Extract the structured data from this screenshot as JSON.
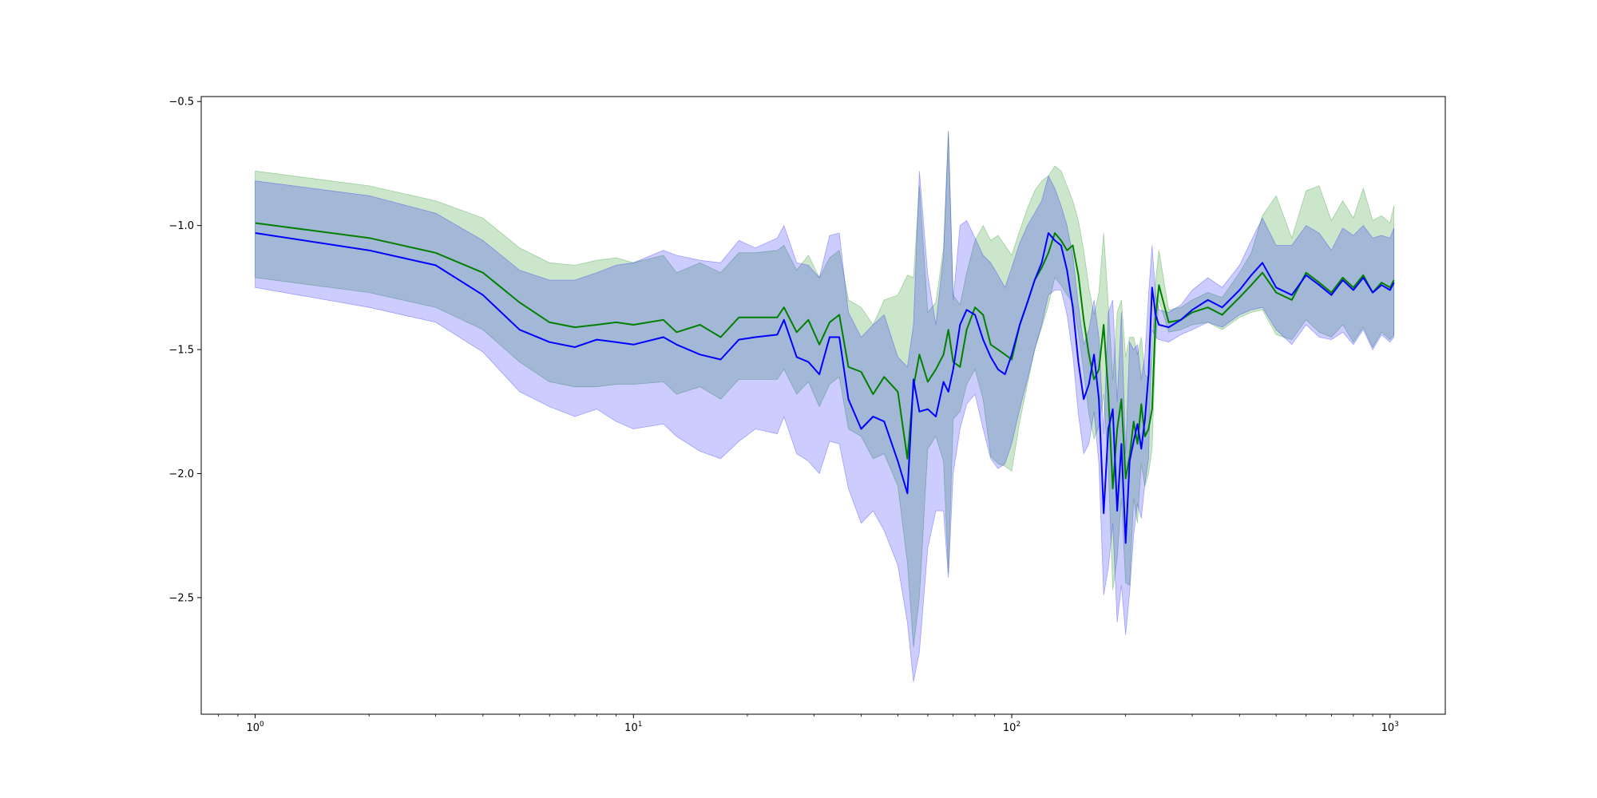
{
  "chart_data": {
    "type": "line",
    "title": "",
    "xlabel": "",
    "ylabel": "",
    "x_scale": "log",
    "xlim": [
      0.72,
      1400
    ],
    "ylim": [
      -2.97,
      -0.48
    ],
    "grid": false,
    "legend": false,
    "x_ticks": [
      {
        "value": 1,
        "base": "10",
        "exp": "0"
      },
      {
        "value": 10,
        "base": "10",
        "exp": "1"
      },
      {
        "value": 100,
        "base": "10",
        "exp": "2"
      },
      {
        "value": 1000,
        "base": "10",
        "exp": "3"
      }
    ],
    "y_ticks": [
      {
        "value": -0.5,
        "label": "−0.5"
      },
      {
        "value": -1.0,
        "label": "−1.0"
      },
      {
        "value": -1.5,
        "label": "−1.5"
      },
      {
        "value": -2.0,
        "label": "−2.0"
      },
      {
        "value": -2.5,
        "label": "−2.5"
      }
    ],
    "series": [
      {
        "color": "#008000",
        "band_color": "#008000",
        "band_opacity": 0.2,
        "x": [
          1,
          2,
          3,
          4,
          5,
          6,
          7,
          8,
          9,
          10,
          12,
          13,
          15,
          17,
          19,
          21,
          24,
          25,
          27,
          29,
          31,
          33,
          35,
          37,
          40,
          43,
          46,
          50,
          53,
          55,
          57,
          60,
          63,
          66,
          68,
          70,
          73,
          76,
          80,
          84,
          88,
          92,
          96,
          100,
          105,
          110,
          115,
          120,
          125,
          130,
          135,
          140,
          145,
          150,
          155,
          160,
          165,
          170,
          175,
          180,
          185,
          190,
          195,
          200,
          205,
          210,
          215,
          220,
          225,
          230,
          235,
          240,
          245,
          260,
          280,
          300,
          330,
          360,
          400,
          430,
          460,
          500,
          550,
          600,
          650,
          700,
          750,
          800,
          850,
          900,
          950,
          1000,
          1024
        ],
        "mean": [
          -0.99,
          -1.05,
          -1.11,
          -1.19,
          -1.31,
          -1.39,
          -1.41,
          -1.4,
          -1.39,
          -1.4,
          -1.38,
          -1.43,
          -1.4,
          -1.45,
          -1.37,
          -1.37,
          -1.37,
          -1.33,
          -1.43,
          -1.38,
          -1.48,
          -1.39,
          -1.36,
          -1.57,
          -1.59,
          -1.68,
          -1.61,
          -1.67,
          -1.94,
          -1.65,
          -1.52,
          -1.63,
          -1.58,
          -1.52,
          -1.42,
          -1.55,
          -1.57,
          -1.42,
          -1.33,
          -1.36,
          -1.48,
          -1.5,
          -1.52,
          -1.54,
          -1.4,
          -1.31,
          -1.22,
          -1.17,
          -1.11,
          -1.03,
          -1.06,
          -1.1,
          -1.08,
          -1.2,
          -1.38,
          -1.52,
          -1.62,
          -1.58,
          -1.4,
          -1.68,
          -2.06,
          -1.82,
          -1.7,
          -2.02,
          -1.93,
          -1.79,
          -1.88,
          -1.72,
          -1.85,
          -1.82,
          -1.74,
          -1.37,
          -1.24,
          -1.39,
          -1.38,
          -1.35,
          -1.33,
          -1.36,
          -1.29,
          -1.24,
          -1.19,
          -1.27,
          -1.3,
          -1.19,
          -1.23,
          -1.27,
          -1.21,
          -1.25,
          -1.2,
          -1.27,
          -1.23,
          -1.25,
          -1.22
        ],
        "lower": [
          -1.21,
          -1.27,
          -1.33,
          -1.42,
          -1.55,
          -1.63,
          -1.65,
          -1.65,
          -1.64,
          -1.64,
          -1.63,
          -1.68,
          -1.65,
          -1.7,
          -1.62,
          -1.62,
          -1.62,
          -1.58,
          -1.68,
          -1.63,
          -1.73,
          -1.64,
          -1.61,
          -1.82,
          -1.85,
          -1.94,
          -1.92,
          -2.05,
          -2.36,
          -2.7,
          -2.5,
          -1.9,
          -1.85,
          -1.95,
          -2.4,
          -1.78,
          -1.75,
          -1.64,
          -1.58,
          -1.7,
          -1.93,
          -1.96,
          -1.97,
          -1.99,
          -1.79,
          -1.64,
          -1.5,
          -1.41,
          -1.32,
          -1.21,
          -1.24,
          -1.28,
          -1.31,
          -1.43,
          -1.59,
          -1.76,
          -1.86,
          -1.81,
          -1.68,
          -1.98,
          -2.47,
          -2.34,
          -2.1,
          -2.44,
          -2.45,
          -2.1,
          -2.2,
          -1.96,
          -2.05,
          -2.0,
          -1.9,
          -1.48,
          -1.3,
          -1.43,
          -1.42,
          -1.4,
          -1.39,
          -1.42,
          -1.37,
          -1.35,
          -1.34,
          -1.44,
          -1.46,
          -1.38,
          -1.43,
          -1.45,
          -1.4,
          -1.47,
          -1.41,
          -1.49,
          -1.43,
          -1.46,
          -1.44
        ],
        "upper": [
          -0.78,
          -0.84,
          -0.9,
          -0.97,
          -1.09,
          -1.15,
          -1.16,
          -1.14,
          -1.13,
          -1.15,
          -1.12,
          -1.19,
          -1.15,
          -1.19,
          -1.11,
          -1.11,
          -1.1,
          -1.08,
          -1.18,
          -1.12,
          -1.21,
          -1.13,
          -1.1,
          -1.3,
          -1.33,
          -1.4,
          -1.3,
          -1.28,
          -1.2,
          -1.21,
          -0.84,
          -1.35,
          -1.31,
          -1.09,
          -0.62,
          -1.28,
          -1.32,
          -1.19,
          -1.06,
          -1.0,
          -1.06,
          -1.04,
          -1.08,
          -1.12,
          -1.02,
          -0.93,
          -0.86,
          -0.82,
          -0.8,
          -0.76,
          -0.78,
          -0.84,
          -0.9,
          -0.98,
          -1.1,
          -1.25,
          -1.36,
          -1.27,
          -1.03,
          -1.32,
          -1.62,
          -1.35,
          -1.3,
          -1.53,
          -1.45,
          -1.45,
          -1.52,
          -1.45,
          -1.6,
          -1.62,
          -1.52,
          -1.22,
          -1.1,
          -1.34,
          -1.33,
          -1.3,
          -1.27,
          -1.29,
          -1.19,
          -1.11,
          -0.96,
          -0.88,
          -1.05,
          -0.86,
          -0.84,
          -0.98,
          -0.9,
          -0.97,
          -0.85,
          -0.98,
          -0.96,
          -0.99,
          -0.92
        ]
      },
      {
        "color": "#0000ff",
        "band_color": "#0000ff",
        "band_opacity": 0.2,
        "x": [
          1,
          2,
          3,
          4,
          5,
          6,
          7,
          8,
          9,
          10,
          12,
          13,
          15,
          17,
          19,
          21,
          24,
          25,
          27,
          29,
          31,
          33,
          35,
          37,
          40,
          43,
          46,
          50,
          53,
          55,
          57,
          60,
          63,
          66,
          68,
          70,
          73,
          76,
          80,
          84,
          88,
          92,
          96,
          100,
          105,
          110,
          115,
          120,
          125,
          130,
          135,
          140,
          145,
          150,
          155,
          160,
          165,
          170,
          175,
          180,
          185,
          190,
          195,
          200,
          205,
          210,
          215,
          220,
          225,
          230,
          235,
          240,
          245,
          260,
          280,
          300,
          330,
          360,
          400,
          430,
          460,
          500,
          550,
          600,
          650,
          700,
          750,
          800,
          850,
          900,
          950,
          1000,
          1024
        ],
        "mean": [
          -1.03,
          -1.1,
          -1.16,
          -1.28,
          -1.42,
          -1.47,
          -1.49,
          -1.46,
          -1.47,
          -1.48,
          -1.45,
          -1.48,
          -1.52,
          -1.54,
          -1.46,
          -1.45,
          -1.44,
          -1.38,
          -1.53,
          -1.55,
          -1.6,
          -1.45,
          -1.45,
          -1.7,
          -1.82,
          -1.77,
          -1.79,
          -1.95,
          -2.08,
          -1.62,
          -1.75,
          -1.74,
          -1.77,
          -1.63,
          -1.67,
          -1.58,
          -1.4,
          -1.34,
          -1.36,
          -1.46,
          -1.53,
          -1.58,
          -1.6,
          -1.52,
          -1.4,
          -1.31,
          -1.22,
          -1.15,
          -1.03,
          -1.06,
          -1.08,
          -1.18,
          -1.33,
          -1.55,
          -1.7,
          -1.64,
          -1.52,
          -1.7,
          -2.16,
          -1.82,
          -1.74,
          -2.15,
          -1.88,
          -2.28,
          -1.95,
          -1.87,
          -1.8,
          -1.9,
          -1.78,
          -1.6,
          -1.25,
          -1.36,
          -1.4,
          -1.41,
          -1.38,
          -1.34,
          -1.3,
          -1.33,
          -1.26,
          -1.2,
          -1.15,
          -1.25,
          -1.28,
          -1.2,
          -1.24,
          -1.28,
          -1.22,
          -1.26,
          -1.21,
          -1.27,
          -1.24,
          -1.26,
          -1.23
        ],
        "lower": [
          -1.25,
          -1.33,
          -1.39,
          -1.51,
          -1.67,
          -1.73,
          -1.77,
          -1.74,
          -1.79,
          -1.82,
          -1.8,
          -1.85,
          -1.91,
          -1.94,
          -1.87,
          -1.82,
          -1.84,
          -1.77,
          -1.92,
          -1.95,
          -2.0,
          -1.87,
          -1.88,
          -2.06,
          -2.2,
          -2.15,
          -2.23,
          -2.37,
          -2.6,
          -2.84,
          -2.72,
          -2.3,
          -2.15,
          -2.15,
          -2.42,
          -2.0,
          -1.82,
          -1.72,
          -1.68,
          -1.82,
          -1.94,
          -1.98,
          -1.96,
          -1.88,
          -1.74,
          -1.62,
          -1.5,
          -1.4,
          -1.28,
          -1.26,
          -1.26,
          -1.36,
          -1.52,
          -1.76,
          -1.92,
          -1.88,
          -1.75,
          -1.96,
          -2.49,
          -2.38,
          -2.2,
          -2.6,
          -2.45,
          -2.65,
          -2.48,
          -2.25,
          -2.12,
          -2.18,
          -2.04,
          -1.94,
          -1.42,
          -1.45,
          -1.46,
          -1.47,
          -1.44,
          -1.42,
          -1.39,
          -1.41,
          -1.36,
          -1.34,
          -1.33,
          -1.42,
          -1.48,
          -1.4,
          -1.45,
          -1.46,
          -1.43,
          -1.48,
          -1.42,
          -1.5,
          -1.44,
          -1.47,
          -1.45
        ],
        "upper": [
          -0.82,
          -0.88,
          -0.95,
          -1.06,
          -1.18,
          -1.22,
          -1.22,
          -1.19,
          -1.16,
          -1.15,
          -1.1,
          -1.12,
          -1.14,
          -1.15,
          -1.06,
          -1.09,
          -1.05,
          -1.0,
          -1.15,
          -1.16,
          -1.21,
          -1.04,
          -1.03,
          -1.35,
          -1.45,
          -1.4,
          -1.36,
          -1.53,
          -1.57,
          -1.4,
          -0.78,
          -1.2,
          -1.4,
          -1.12,
          -0.62,
          -1.3,
          -1.0,
          -0.98,
          -1.05,
          -1.12,
          -1.15,
          -1.2,
          -1.25,
          -1.17,
          -1.07,
          -1.0,
          -0.95,
          -0.9,
          -0.8,
          -0.85,
          -0.92,
          -1.0,
          -1.12,
          -1.32,
          -1.48,
          -1.42,
          -1.3,
          -1.45,
          -1.84,
          -1.35,
          -1.3,
          -1.71,
          -1.35,
          -1.92,
          -1.47,
          -1.5,
          -1.48,
          -1.62,
          -1.52,
          -1.28,
          -1.08,
          -1.28,
          -1.34,
          -1.35,
          -1.32,
          -1.26,
          -1.21,
          -1.25,
          -1.16,
          -1.06,
          -0.97,
          -1.08,
          -1.08,
          -1.0,
          -1.03,
          -1.1,
          -1.01,
          -1.04,
          -1.0,
          -1.05,
          -1.04,
          -1.05,
          -1.01
        ]
      }
    ]
  }
}
